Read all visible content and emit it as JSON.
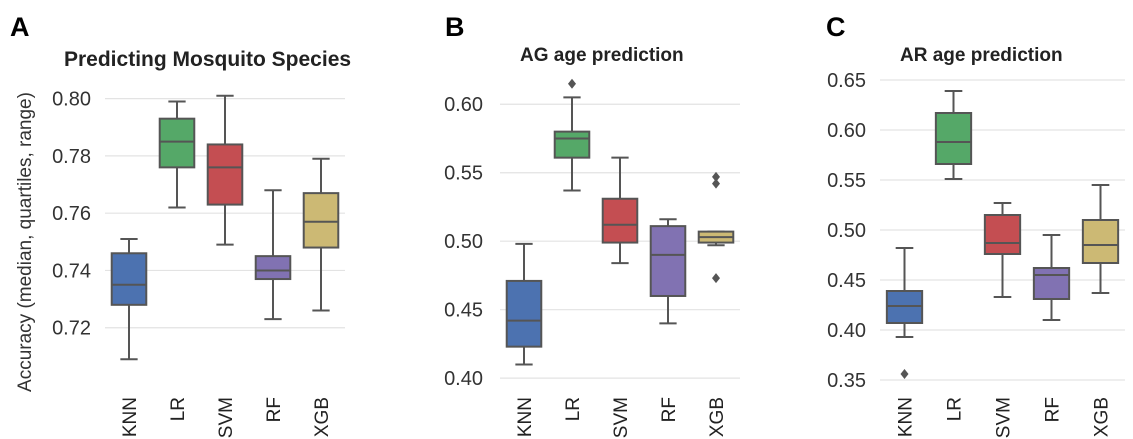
{
  "chart_data": [
    {
      "type": "box",
      "panel_label": "A",
      "title": "Predicting Mosquito Species",
      "ylabel": "Accuracy (median, quartiles, range)",
      "xlabel": "",
      "ylim": [
        0.7,
        0.81
      ],
      "yticks": [
        0.72,
        0.74,
        0.76,
        0.78,
        0.8
      ],
      "ytick_labels": [
        "0.72",
        "0.74",
        "0.76",
        "0.78",
        "0.80"
      ],
      "grid": true,
      "categories": [
        "KNN",
        "LR",
        "SVM",
        "RF",
        "XGB"
      ],
      "colors": [
        "#4c72b0",
        "#55a868",
        "#c44e52",
        "#8172b2",
        "#ccb974"
      ],
      "boxes": [
        {
          "min": 0.709,
          "q1": 0.728,
          "median": 0.735,
          "q3": 0.746,
          "max": 0.751,
          "outliers": []
        },
        {
          "min": 0.762,
          "q1": 0.776,
          "median": 0.785,
          "q3": 0.793,
          "max": 0.799,
          "outliers": []
        },
        {
          "min": 0.749,
          "q1": 0.763,
          "median": 0.776,
          "q3": 0.784,
          "max": 0.801,
          "outliers": []
        },
        {
          "min": 0.723,
          "q1": 0.737,
          "median": 0.74,
          "q3": 0.745,
          "max": 0.768,
          "outliers": []
        },
        {
          "min": 0.726,
          "q1": 0.748,
          "median": 0.757,
          "q3": 0.767,
          "max": 0.779,
          "outliers": []
        }
      ]
    },
    {
      "type": "box",
      "panel_label": "B",
      "title": "AG age prediction",
      "ylabel": "",
      "xlabel": "",
      "ylim": [
        0.395,
        0.625
      ],
      "yticks": [
        0.4,
        0.45,
        0.5,
        0.55,
        0.6
      ],
      "ytick_labels": [
        "0.40",
        "0.45",
        "0.50",
        "0.55",
        "0.60"
      ],
      "grid": true,
      "categories": [
        "KNN",
        "LR",
        "SVM",
        "RF",
        "XGB"
      ],
      "colors": [
        "#4c72b0",
        "#55a868",
        "#c44e52",
        "#8172b2",
        "#ccb974"
      ],
      "boxes": [
        {
          "min": 0.41,
          "q1": 0.423,
          "median": 0.442,
          "q3": 0.471,
          "max": 0.498,
          "outliers": []
        },
        {
          "min": 0.537,
          "q1": 0.561,
          "median": 0.575,
          "q3": 0.58,
          "max": 0.605,
          "outliers": [
            0.615
          ]
        },
        {
          "min": 0.484,
          "q1": 0.499,
          "median": 0.512,
          "q3": 0.531,
          "max": 0.561,
          "outliers": []
        },
        {
          "min": 0.44,
          "q1": 0.46,
          "median": 0.49,
          "q3": 0.511,
          "max": 0.516,
          "outliers": []
        },
        {
          "min": 0.497,
          "q1": 0.499,
          "median": 0.503,
          "q3": 0.507,
          "max": 0.507,
          "outliers": [
            0.473,
            0.542,
            0.547
          ]
        }
      ]
    },
    {
      "type": "box",
      "panel_label": "C",
      "title": "AR age prediction",
      "ylabel": "",
      "xlabel": "",
      "ylim": [
        0.345,
        0.66
      ],
      "yticks": [
        0.35,
        0.4,
        0.45,
        0.5,
        0.55,
        0.6,
        0.65
      ],
      "ytick_labels": [
        "0.35",
        "0.40",
        "0.45",
        "0.50",
        "0.55",
        "0.60",
        "0.65"
      ],
      "grid": true,
      "categories": [
        "KNN",
        "LR",
        "SVM",
        "RF",
        "XGB"
      ],
      "colors": [
        "#4c72b0",
        "#55a868",
        "#c44e52",
        "#8172b2",
        "#ccb974"
      ],
      "boxes": [
        {
          "min": 0.393,
          "q1": 0.407,
          "median": 0.424,
          "q3": 0.439,
          "max": 0.482,
          "outliers": [
            0.356
          ]
        },
        {
          "min": 0.551,
          "q1": 0.566,
          "median": 0.588,
          "q3": 0.617,
          "max": 0.639,
          "outliers": []
        },
        {
          "min": 0.433,
          "q1": 0.476,
          "median": 0.487,
          "q3": 0.515,
          "max": 0.527,
          "outliers": []
        },
        {
          "min": 0.41,
          "q1": 0.431,
          "median": 0.455,
          "q3": 0.462,
          "max": 0.495,
          "outliers": []
        },
        {
          "min": 0.437,
          "q1": 0.467,
          "median": 0.485,
          "q3": 0.51,
          "max": 0.545,
          "outliers": []
        }
      ]
    }
  ]
}
